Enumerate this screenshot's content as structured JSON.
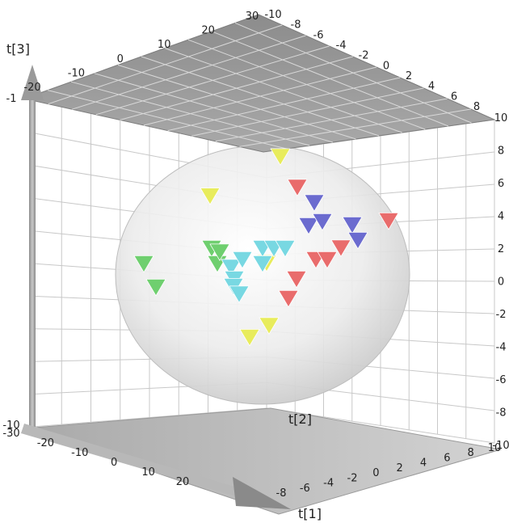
{
  "chart_data": {
    "type": "scatter",
    "projection": "3d",
    "axis_titles": {
      "x": "t[1]",
      "y": "t[2]",
      "z": "t[3]"
    },
    "xlim": [
      -30,
      30
    ],
    "ylim": [
      -10,
      10
    ],
    "zlim": [
      -10,
      10
    ],
    "tick_labels": {
      "top_x": [
        "-20",
        "-10",
        "0",
        "10",
        "20",
        "30"
      ],
      "top_y": [
        "-10",
        "-8",
        "-6",
        "-4",
        "-2",
        "0",
        "2",
        "4",
        "6",
        "8"
      ],
      "bottom_x": [
        "-30",
        "-20",
        "-10",
        "0",
        "10",
        "20"
      ],
      "bottom_y": [
        "-8",
        "-6",
        "-4",
        "-2",
        "0",
        "2",
        "4",
        "6",
        "8",
        "10"
      ],
      "right_z": [
        "10",
        "8",
        "6",
        "4",
        "2",
        "0",
        "-2",
        "-4",
        "-6",
        "-8",
        "-10"
      ],
      "left_z": [
        "-10",
        "-1"
      ]
    },
    "grid": true,
    "confidence_ellipsoid": true,
    "marker": "triangle-down",
    "groups": [
      {
        "color": "#e8ec5c",
        "points": [
          [
            2,
            2,
            8.5
          ],
          [
            -11,
            3,
            6.2
          ],
          [
            3,
            -4,
            0
          ],
          [
            -4,
            3,
            -3
          ],
          [
            0,
            2,
            -2.5
          ]
        ]
      },
      {
        "color": "#e96c6c",
        "points": [
          [
            5,
            2,
            6.5
          ],
          [
            4,
            1,
            -1
          ],
          [
            6,
            0,
            0
          ],
          [
            10,
            -1,
            1
          ],
          [
            12,
            -1,
            1
          ],
          [
            15,
            -2,
            1.5
          ],
          [
            24,
            -3,
            3
          ]
        ]
      },
      {
        "color": "#6b6bcf",
        "points": [
          [
            8,
            2,
            5.5
          ],
          [
            7,
            2,
            4
          ],
          [
            10,
            1,
            4
          ],
          [
            17,
            -2,
            3
          ],
          [
            18,
            -2,
            2
          ]
        ]
      },
      {
        "color": "#6fcf6f",
        "points": [
          [
            -9,
            0,
            2
          ],
          [
            -8,
            0,
            1
          ],
          [
            -7,
            -1,
            1.5
          ],
          [
            -21,
            0,
            1
          ],
          [
            -20,
            2,
            0
          ]
        ]
      },
      {
        "color": "#78d8e2",
        "points": [
          [
            -5,
            -1,
            0.5
          ],
          [
            -3,
            -1,
            1
          ],
          [
            0,
            0,
            2
          ],
          [
            2,
            0,
            2
          ],
          [
            4,
            0,
            2
          ],
          [
            -5,
            0,
            0
          ],
          [
            -4,
            -2,
            -1
          ],
          [
            -3,
            -2,
            -1.5
          ],
          [
            0,
            0,
            1
          ]
        ]
      }
    ]
  }
}
